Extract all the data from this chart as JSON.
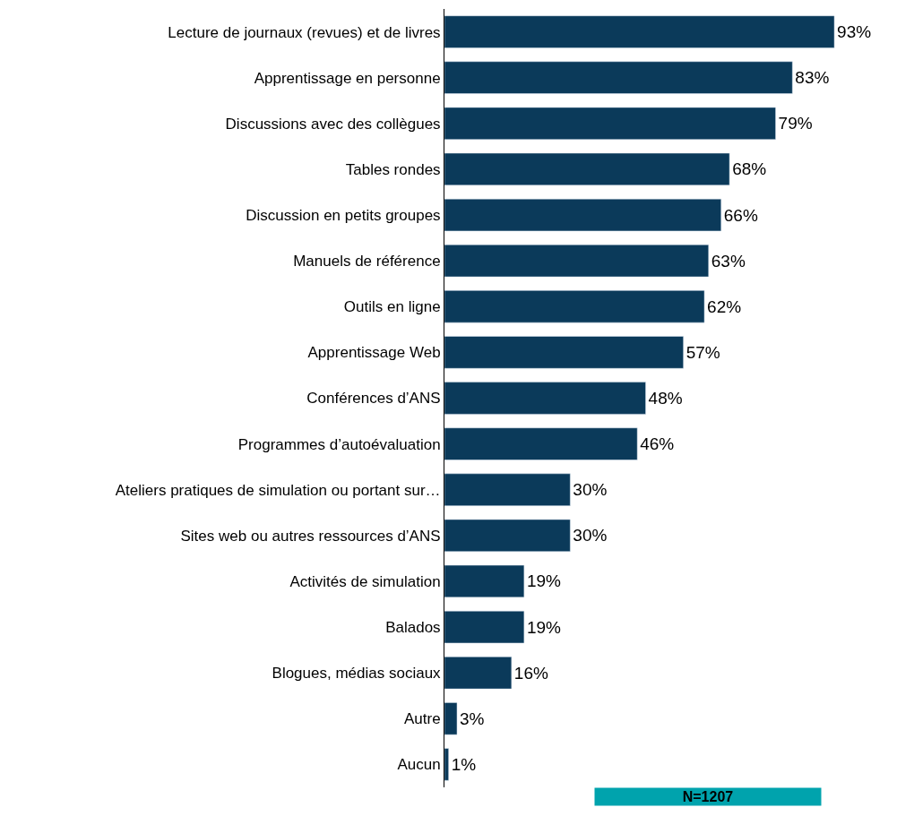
{
  "chart_data": {
    "type": "bar",
    "orientation": "horizontal",
    "categories": [
      "Lecture de journaux (revues) et de livres",
      "Apprentissage en personne",
      "Discussions avec des collègues",
      "Tables rondes",
      "Discussion en petits groupes",
      "Manuels de référence",
      "Outils en ligne",
      "Apprentissage Web",
      "Conférences d’ANS",
      "Programmes d’autoévaluation",
      "Ateliers pratiques de simulation ou portant sur…",
      "Sites web ou autres ressources d’ANS",
      "Activités de simulation",
      "Balados",
      "Blogues, médias sociaux",
      "Autre",
      "Aucun"
    ],
    "values": [
      93,
      83,
      79,
      68,
      66,
      63,
      62,
      57,
      48,
      46,
      30,
      30,
      19,
      19,
      16,
      3,
      1
    ],
    "value_labels": [
      "93%",
      "83%",
      "79%",
      "68%",
      "66%",
      "63%",
      "62%",
      "57%",
      "48%",
      "46%",
      "30%",
      "30%",
      "19%",
      "19%",
      "16%",
      "3%",
      "1%"
    ],
    "color": "#0b3a5a",
    "annotations": [
      "N=1207"
    ]
  }
}
